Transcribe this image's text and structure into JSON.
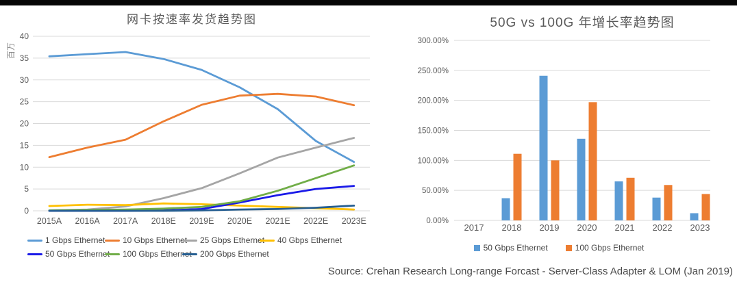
{
  "page": {
    "source": "Source: Crehan Research Long-range Forcast - Server-Class Adapter & LOM (Jan 2019)"
  },
  "chart_data": [
    {
      "type": "line",
      "title": "网卡按速率发货趋势图",
      "ylabel": "百万",
      "categories": [
        "2015A",
        "2016A",
        "2017A",
        "2018E",
        "2019E",
        "2020E",
        "2021E",
        "2022E",
        "2023E"
      ],
      "series": [
        {
          "name": "1 Gbps Ethernet",
          "color": "#5B9BD5",
          "values": [
            35.4,
            35.9,
            36.4,
            34.8,
            32.3,
            28.3,
            23.3,
            16.0,
            11.2
          ]
        },
        {
          "name": "10 Gbps Ethernet",
          "color": "#ED7D31",
          "values": [
            12.3,
            14.5,
            16.3,
            20.5,
            24.3,
            26.4,
            26.8,
            26.2,
            24.2
          ]
        },
        {
          "name": "25 Gbps Ethernet",
          "color": "#A5A5A5",
          "values": [
            0.1,
            0.3,
            1.0,
            2.9,
            5.2,
            8.6,
            12.2,
            14.5,
            16.7
          ]
        },
        {
          "name": "40 Gbps Ethernet",
          "color": "#FFC000",
          "values": [
            1.1,
            1.4,
            1.3,
            1.7,
            1.5,
            1.2,
            0.9,
            0.6,
            0.3
          ]
        },
        {
          "name": "50 Gbps Ethernet",
          "color": "#1A1AE8",
          "values": [
            0.0,
            0.0,
            0.0,
            0.1,
            0.4,
            1.9,
            3.6,
            5.0,
            5.7
          ]
        },
        {
          "name": "100 Gbps Ethernet",
          "color": "#70AD47",
          "values": [
            0.1,
            0.2,
            0.3,
            0.5,
            0.9,
            2.2,
            4.6,
            7.5,
            10.4
          ]
        },
        {
          "name": "200 Gbps Ethernet",
          "color": "#255E91",
          "values": [
            0.0,
            0.0,
            0.0,
            0.0,
            0.1,
            0.3,
            0.4,
            0.7,
            1.2
          ]
        }
      ],
      "ylim": [
        0,
        40
      ],
      "ytick_step": 5,
      "grid": true,
      "legend_position": "bottom"
    },
    {
      "type": "bar",
      "title": "50G vs 100G 年增长率趋势图",
      "categories": [
        "2017",
        "2018",
        "2019",
        "2020",
        "2021",
        "2022",
        "2023"
      ],
      "series": [
        {
          "name": "50 Gbps Ethernet",
          "color": "#5B9BD5",
          "values": [
            0,
            37,
            241,
            136,
            65,
            38,
            12
          ]
        },
        {
          "name": "100 Gbps Ethernet",
          "color": "#ED7D31",
          "values": [
            0,
            111,
            100,
            197,
            71,
            59,
            44
          ]
        }
      ],
      "ylim": [
        0,
        300
      ],
      "ytick_step": 50,
      "ytick_format": "percent2",
      "grid": true,
      "legend_position": "bottom"
    }
  ],
  "style": {
    "gridline_color": "#D9D9D9",
    "tick_label_color": "#595959",
    "axis_label_color": "#808080"
  }
}
